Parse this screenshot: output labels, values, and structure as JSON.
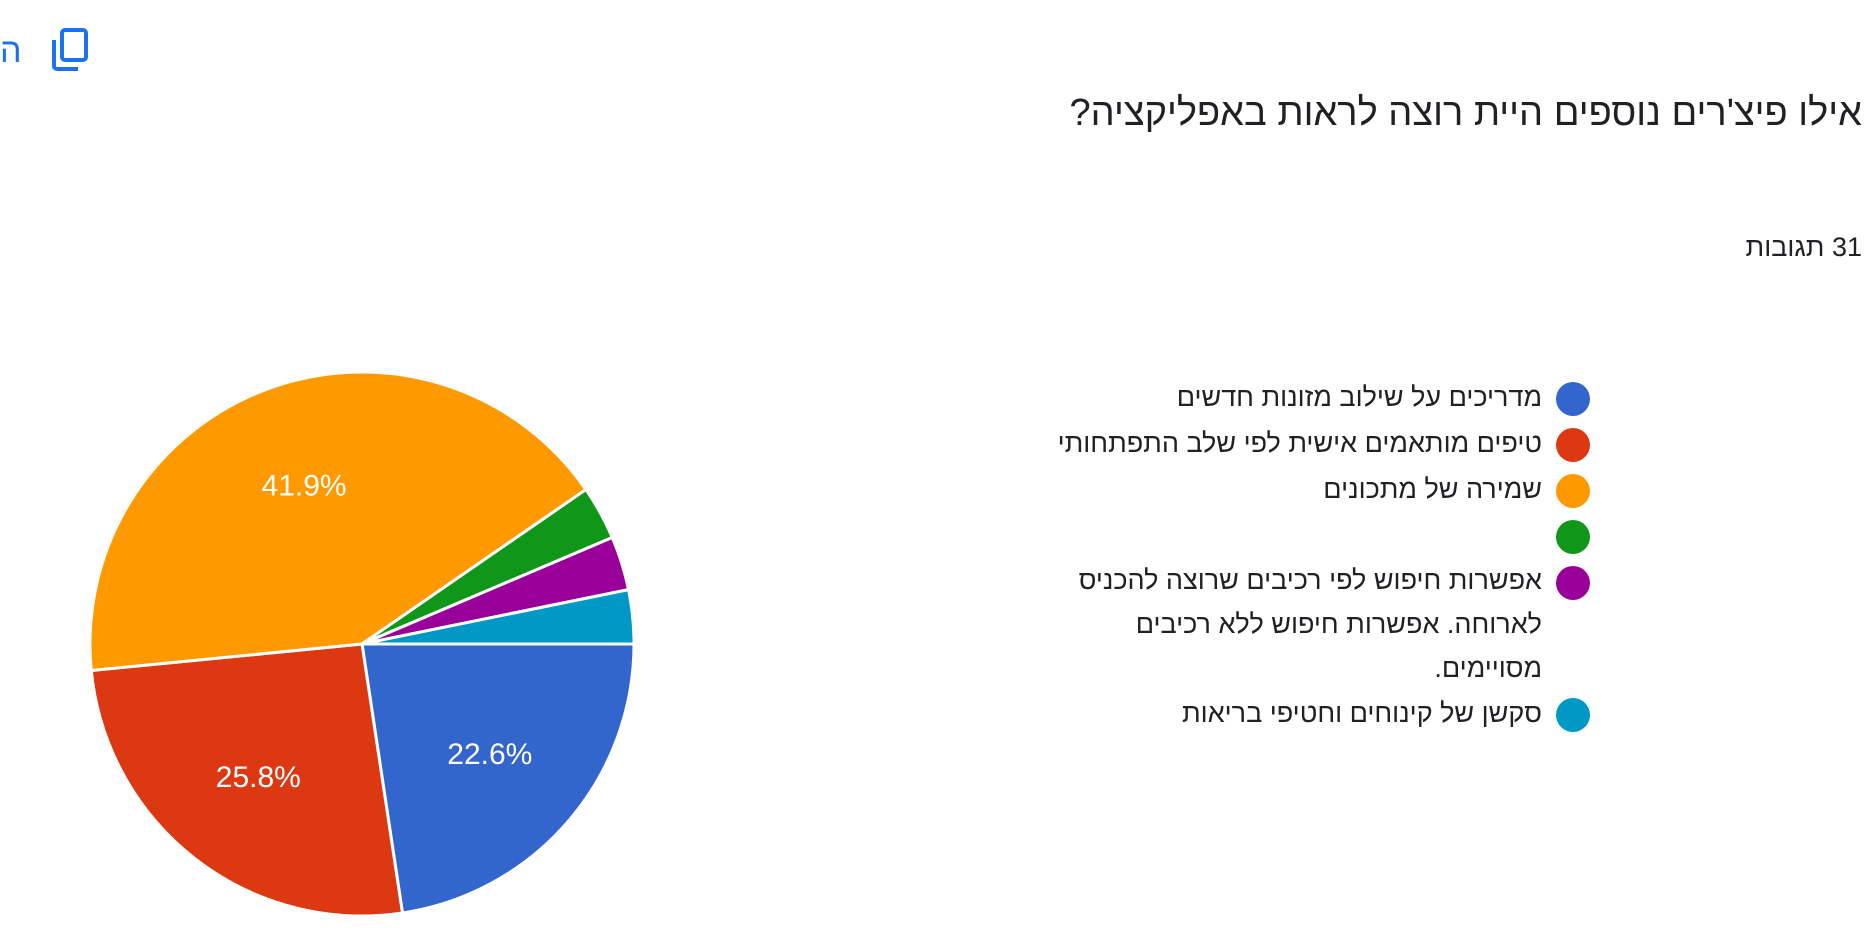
{
  "header": {
    "copy_partial": "ה",
    "copy_icon": "copy-icon"
  },
  "question": {
    "title": "אילו פיצ'רים נוספים היית רוצה לראות באפליקציה?",
    "responses": "31 תגובות"
  },
  "chart_data": {
    "type": "pie",
    "title": "אילו פיצ'רים נוספים היית רוצה לראות באפליקציה?",
    "total_responses": 31,
    "start_angle_deg": 0,
    "direction": "clockwise",
    "slices": [
      {
        "label": "מדריכים על שילוב מזונות חדשים",
        "value": 22.6,
        "color": "#3366cc",
        "data_label": "22.6%"
      },
      {
        "label": "טיפים מותאמים אישית לפי שלב התפתחותי",
        "value": 25.8,
        "color": "#dc3912",
        "data_label": "25.8%"
      },
      {
        "label": "שמירה של מתכונים",
        "value": 41.9,
        "color": "#ff9900",
        "data_label": "41.9%"
      },
      {
        "label": "",
        "value": 3.2,
        "color": "#109618",
        "data_label": ""
      },
      {
        "label": "אפשרות חיפוש לפי רכיבים שרוצה להכניס לארוחה. אפשרות חיפוש ללא רכיבים מסויימים.",
        "value": 3.2,
        "color": "#990099",
        "data_label": ""
      },
      {
        "label": "סקשן של קינוחים וחטיפי בריאות",
        "value": 3.2,
        "color": "#0099c6",
        "data_label": ""
      }
    ],
    "legend_position": "right"
  }
}
